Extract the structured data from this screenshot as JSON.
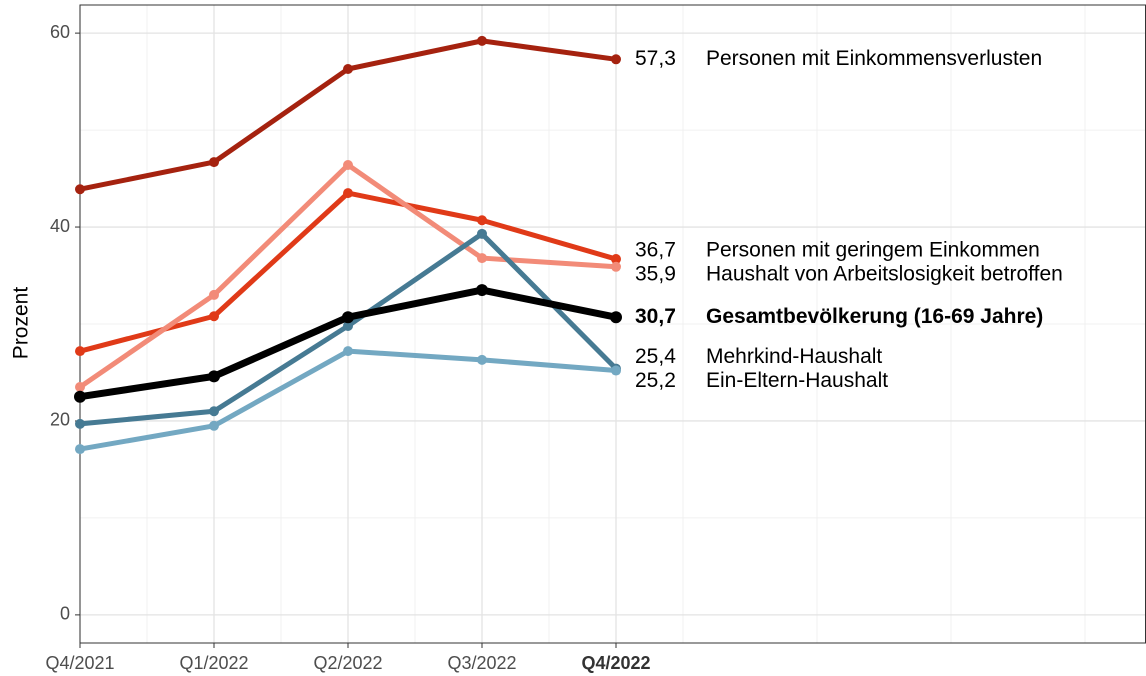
{
  "chart_data": {
    "type": "line",
    "y_label": "Prozent",
    "categories": [
      "Q4/2021",
      "Q1/2022",
      "Q2/2022",
      "Q3/2022",
      "Q4/2022"
    ],
    "bold_category_index": 4,
    "ylim": [
      -2.9,
      62.9
    ],
    "yticks": [
      0,
      20,
      40,
      60
    ],
    "y_minor_grid": [
      10,
      30,
      50
    ],
    "grid": true,
    "series": [
      {
        "name": "Personen mit Einkommensverlusten",
        "color": "#a5220f",
        "values": [
          43.9,
          46.7,
          56.3,
          59.2,
          57.3
        ],
        "end_label": "57,3"
      },
      {
        "name": "Personen mit geringem Einkommen",
        "color": "#e03a18",
        "values": [
          27.2,
          30.8,
          43.5,
          40.7,
          36.7
        ],
        "end_label": "36,7"
      },
      {
        "name": "Haushalt von Arbeitslosigkeit betroffen",
        "color": "#f28b78",
        "values": [
          23.5,
          33.0,
          46.4,
          36.8,
          35.9
        ],
        "end_label": "35,9"
      },
      {
        "name": "Gesamtbevölkerung (16-69 Jahre)",
        "color": "#000000",
        "values": [
          22.5,
          24.6,
          30.7,
          33.5,
          30.7
        ],
        "end_label": "30,7",
        "bold": true
      },
      {
        "name": "Mehrkind-Haushalt",
        "color": "#467a93",
        "values": [
          19.7,
          21.0,
          29.8,
          39.3,
          25.4
        ],
        "end_label": "25,4"
      },
      {
        "name": "Ein-Eltern-Haushalt",
        "color": "#73a8c2",
        "values": [
          17.1,
          19.5,
          27.2,
          26.3,
          25.2
        ],
        "end_label": "25,2"
      }
    ]
  }
}
